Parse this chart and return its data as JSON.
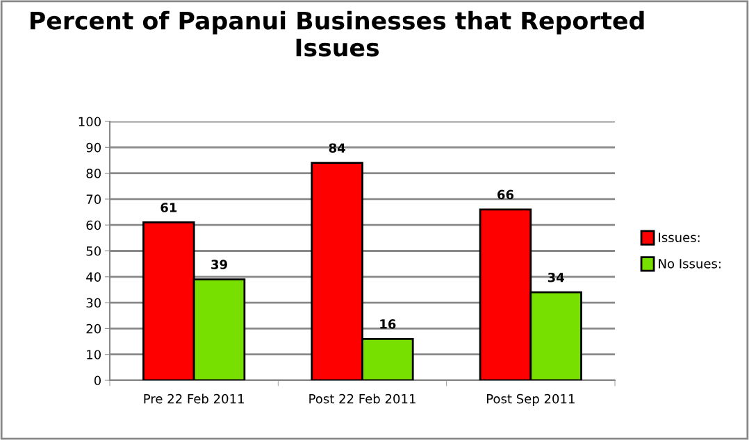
{
  "chart_data": {
    "type": "bar",
    "title": "Percent of Papanui Businesses that Reported Issues",
    "categories": [
      "Pre 22 Feb 2011",
      "Post 22 Feb 2011",
      "Post Sep 2011"
    ],
    "series": [
      {
        "name": "Issues:",
        "color": "#ff0000",
        "values": [
          61,
          84,
          66
        ]
      },
      {
        "name": "No Issues:",
        "color": "#77e000",
        "values": [
          39,
          16,
          34
        ]
      }
    ],
    "ylim": [
      0,
      100
    ],
    "yticks": [
      0,
      10,
      20,
      30,
      40,
      50,
      60,
      70,
      80,
      90,
      100
    ],
    "grid": "y",
    "legend": "right",
    "data_labels": true
  }
}
